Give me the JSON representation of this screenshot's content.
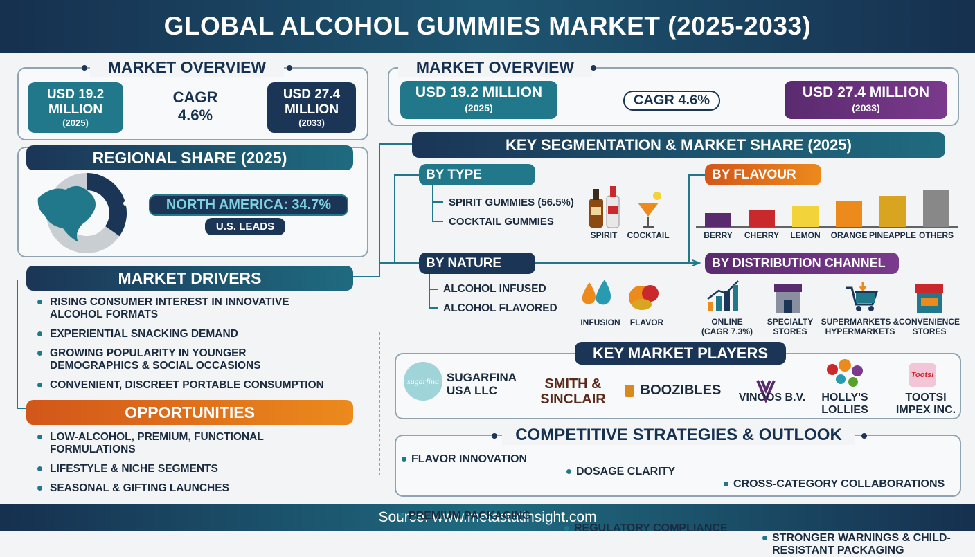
{
  "header": {
    "title": "GLOBAL ALCOHOL GUMMIES MARKET (2025-2033)"
  },
  "left": {
    "overview": {
      "title": "MARKET OVERVIEW",
      "start": {
        "line1": "USD 19.2",
        "line2": "MILLION",
        "year": "(2025)"
      },
      "cagr": {
        "line1": "CAGR",
        "line2": "4.6%"
      },
      "end": {
        "line1": "USD 27.4",
        "line2": "MILLION",
        "year": "(2033)"
      }
    },
    "regional": {
      "title": "REGIONAL SHARE (2025)",
      "label": "NORTH AMERICA: 34.7%",
      "share": 34.7,
      "note": "U.S. LEADS"
    },
    "drivers": {
      "title": "MARKET DRIVERS",
      "items": [
        "RISING CONSUMER INTEREST IN INNOVATIVE ALCOHOL FORMATS",
        "EXPERIENTIAL SNACKING DEMAND",
        "GROWING POPULARITY IN YOUNGER DEMOGRAPHICS & SOCIAL OCCASIONS",
        "CONVENIENT, DISCREET PORTABLE CONSUMPTION"
      ]
    },
    "opportunities": {
      "title": "OPPORTUNITIES",
      "items": [
        "LOW-ALCOHOL, PREMIUM, FUNCTIONAL FORMULATIONS",
        "LIFESTYLE & NICHE SEGMENTS",
        "SEASONAL & GIFTING LAUNCHES"
      ]
    }
  },
  "right": {
    "overview": {
      "title": "MARKET OVERVIEW",
      "start": {
        "value": "USD 19.2 MILLION",
        "year": "(2025)"
      },
      "cagr": "CAGR 4.6%",
      "end": {
        "value": "USD 27.4 MILLION",
        "year": "(2033)"
      }
    },
    "segmentation": {
      "title": "KEY SEGMENTATION & MARKET SHARE (2025)",
      "type": {
        "title": "BY TYPE",
        "items": [
          "SPIRIT GUMMIES (56.5%)",
          "COCKTAIL GUMMIES"
        ],
        "icons": [
          "SPIRIT",
          "COCKTAIL"
        ]
      },
      "nature": {
        "title": "BY NATURE",
        "items": [
          "ALCOHOL INFUSED",
          "ALCOHOL FLAVORED"
        ],
        "icons": [
          "INFUSION",
          "FLAVOR"
        ]
      },
      "flavour": {
        "title": "BY FLAVOUR",
        "categories": [
          "BERRY",
          "CHERRY",
          "LEMON",
          "ORANGE",
          "PINEAPPLE",
          "OTHERS"
        ],
        "values": [
          20,
          25,
          31,
          37,
          45,
          53
        ],
        "colors": [
          "#5a2a6e",
          "#c9282d",
          "#f2d43a",
          "#ec8a1c",
          "#d9a520",
          "#888888"
        ]
      },
      "distribution": {
        "title": "BY DISTRIBUTION CHANNEL",
        "channels": [
          {
            "name": "ONLINE",
            "note": "(CAGR 7.3%)"
          },
          {
            "name": "SPECIALTY STORES"
          },
          {
            "name": "SUPERMARKETS & HYPERMARKETS"
          },
          {
            "name": "CONVENIENCE STORES"
          }
        ]
      }
    },
    "players": {
      "title": "KEY MARKET PLAYERS",
      "items": [
        {
          "logo": "sugarfina",
          "name": "SUGARFINA USA LLC"
        },
        {
          "name": "SMITH & SINCLAIR"
        },
        {
          "name": "BOOZIBLES"
        },
        {
          "name": "VINOOS B.V."
        },
        {
          "name": "HOLLY'S LOLLIES"
        },
        {
          "logo": "Tootsi",
          "name": "TOOTSI IMPEX INC."
        }
      ]
    },
    "strategies": {
      "title": "COMPETITIVE STRATEGIES & OUTLOOK",
      "items": [
        "FLAVOR INNOVATION",
        "DOSAGE CLARITY",
        "CROSS-CATEGORY COLLABORATIONS",
        "PREMIUM PACKAGING",
        "REGULATORY COMPLIANCE",
        "STRONGER WARNINGS & CHILD-RESISTANT PACKAGING"
      ]
    }
  },
  "footer": {
    "source": "Source: www.metastatinsight.com"
  }
}
